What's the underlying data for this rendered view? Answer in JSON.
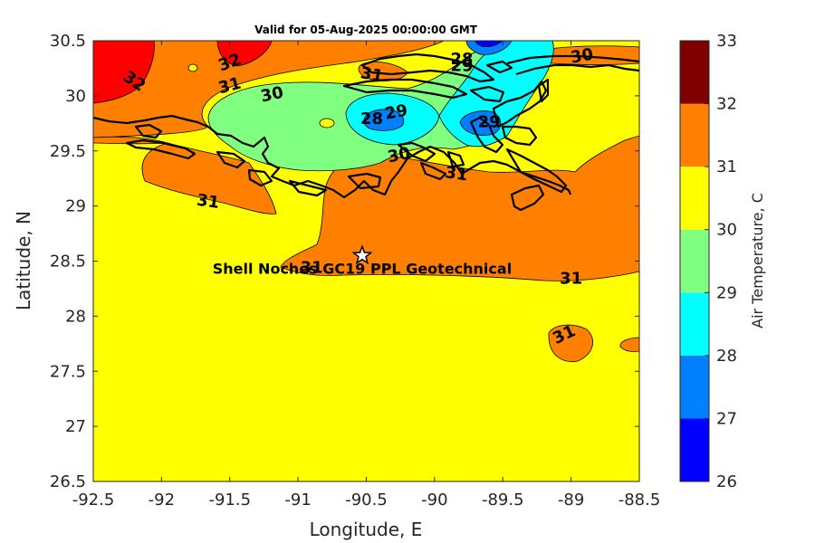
{
  "chart_data": {
    "type": "heatmap",
    "title": "Valid for 05-Aug-2025 00:00:00 GMT",
    "xlabel": "Longitude, E",
    "ylabel": "Latitude, N",
    "xlim": [
      -92.5,
      -88.5
    ],
    "ylim": [
      26.5,
      30.5
    ],
    "x_ticks": [
      "-92.5",
      "-92",
      "-91.5",
      "-91",
      "-90.5",
      "-90",
      "-89.5",
      "-89",
      "-88.5"
    ],
    "y_ticks": [
      "26.5",
      "27",
      "27.5",
      "28",
      "28.5",
      "29",
      "29.5",
      "30",
      "30.5"
    ],
    "colorbar": {
      "label": "Air Temperature, C",
      "ticks": [
        "26",
        "27",
        "28",
        "29",
        "30",
        "31",
        "32",
        "33"
      ],
      "levels": [
        {
          "min": 26,
          "max": 27,
          "color": "#0000ff"
        },
        {
          "min": 27,
          "max": 28,
          "color": "#0080ff"
        },
        {
          "min": 28,
          "max": 29,
          "color": "#00ffff"
        },
        {
          "min": 29,
          "max": 30,
          "color": "#80ff80"
        },
        {
          "min": 30,
          "max": 31,
          "color": "#ffff00"
        },
        {
          "min": 31,
          "max": 32,
          "color": "#ff8000"
        },
        {
          "min": 32,
          "max": 33,
          "color": "#ff0000"
        }
      ],
      "top_color": "#800000"
    },
    "site": {
      "name": "Shell Noches GC19 PPL  Geotechnical",
      "lon": -90.53,
      "lat": 28.55
    },
    "contour_labels": [
      {
        "text": "32",
        "lon": -92.2,
        "lat": 30.13,
        "rot": 35
      },
      {
        "text": "32",
        "lon": -91.5,
        "lat": 30.3,
        "rot": -20
      },
      {
        "text": "31",
        "lon": -91.5,
        "lat": 30.09,
        "rot": -15
      },
      {
        "text": "30",
        "lon": -91.19,
        "lat": 30.01,
        "rot": -12
      },
      {
        "text": "31",
        "lon": -90.46,
        "lat": 30.19,
        "rot": 10
      },
      {
        "text": "28",
        "lon": -90.46,
        "lat": 29.79,
        "rot": 0
      },
      {
        "text": "29",
        "lon": -90.28,
        "lat": 29.85,
        "rot": -10
      },
      {
        "text": "28",
        "lon": -89.8,
        "lat": 30.33,
        "rot": 0
      },
      {
        "text": "29",
        "lon": -89.8,
        "lat": 30.27,
        "rot": 0
      },
      {
        "text": "30",
        "lon": -88.92,
        "lat": 30.36,
        "rot": -10
      },
      {
        "text": "29",
        "lon": -89.6,
        "lat": 29.76,
        "rot": 0
      },
      {
        "text": "30",
        "lon": -90.26,
        "lat": 29.46,
        "rot": -12
      },
      {
        "text": "31",
        "lon": -89.84,
        "lat": 29.29,
        "rot": 8
      },
      {
        "text": "31",
        "lon": -91.66,
        "lat": 29.04,
        "rot": 8
      },
      {
        "text": "31",
        "lon": -90.9,
        "lat": 28.44,
        "rot": 0
      },
      {
        "text": "31",
        "lon": -89.0,
        "lat": 28.34,
        "rot": 0
      },
      {
        "text": "31",
        "lon": -89.05,
        "lat": 27.83,
        "rot": -25
      }
    ]
  }
}
